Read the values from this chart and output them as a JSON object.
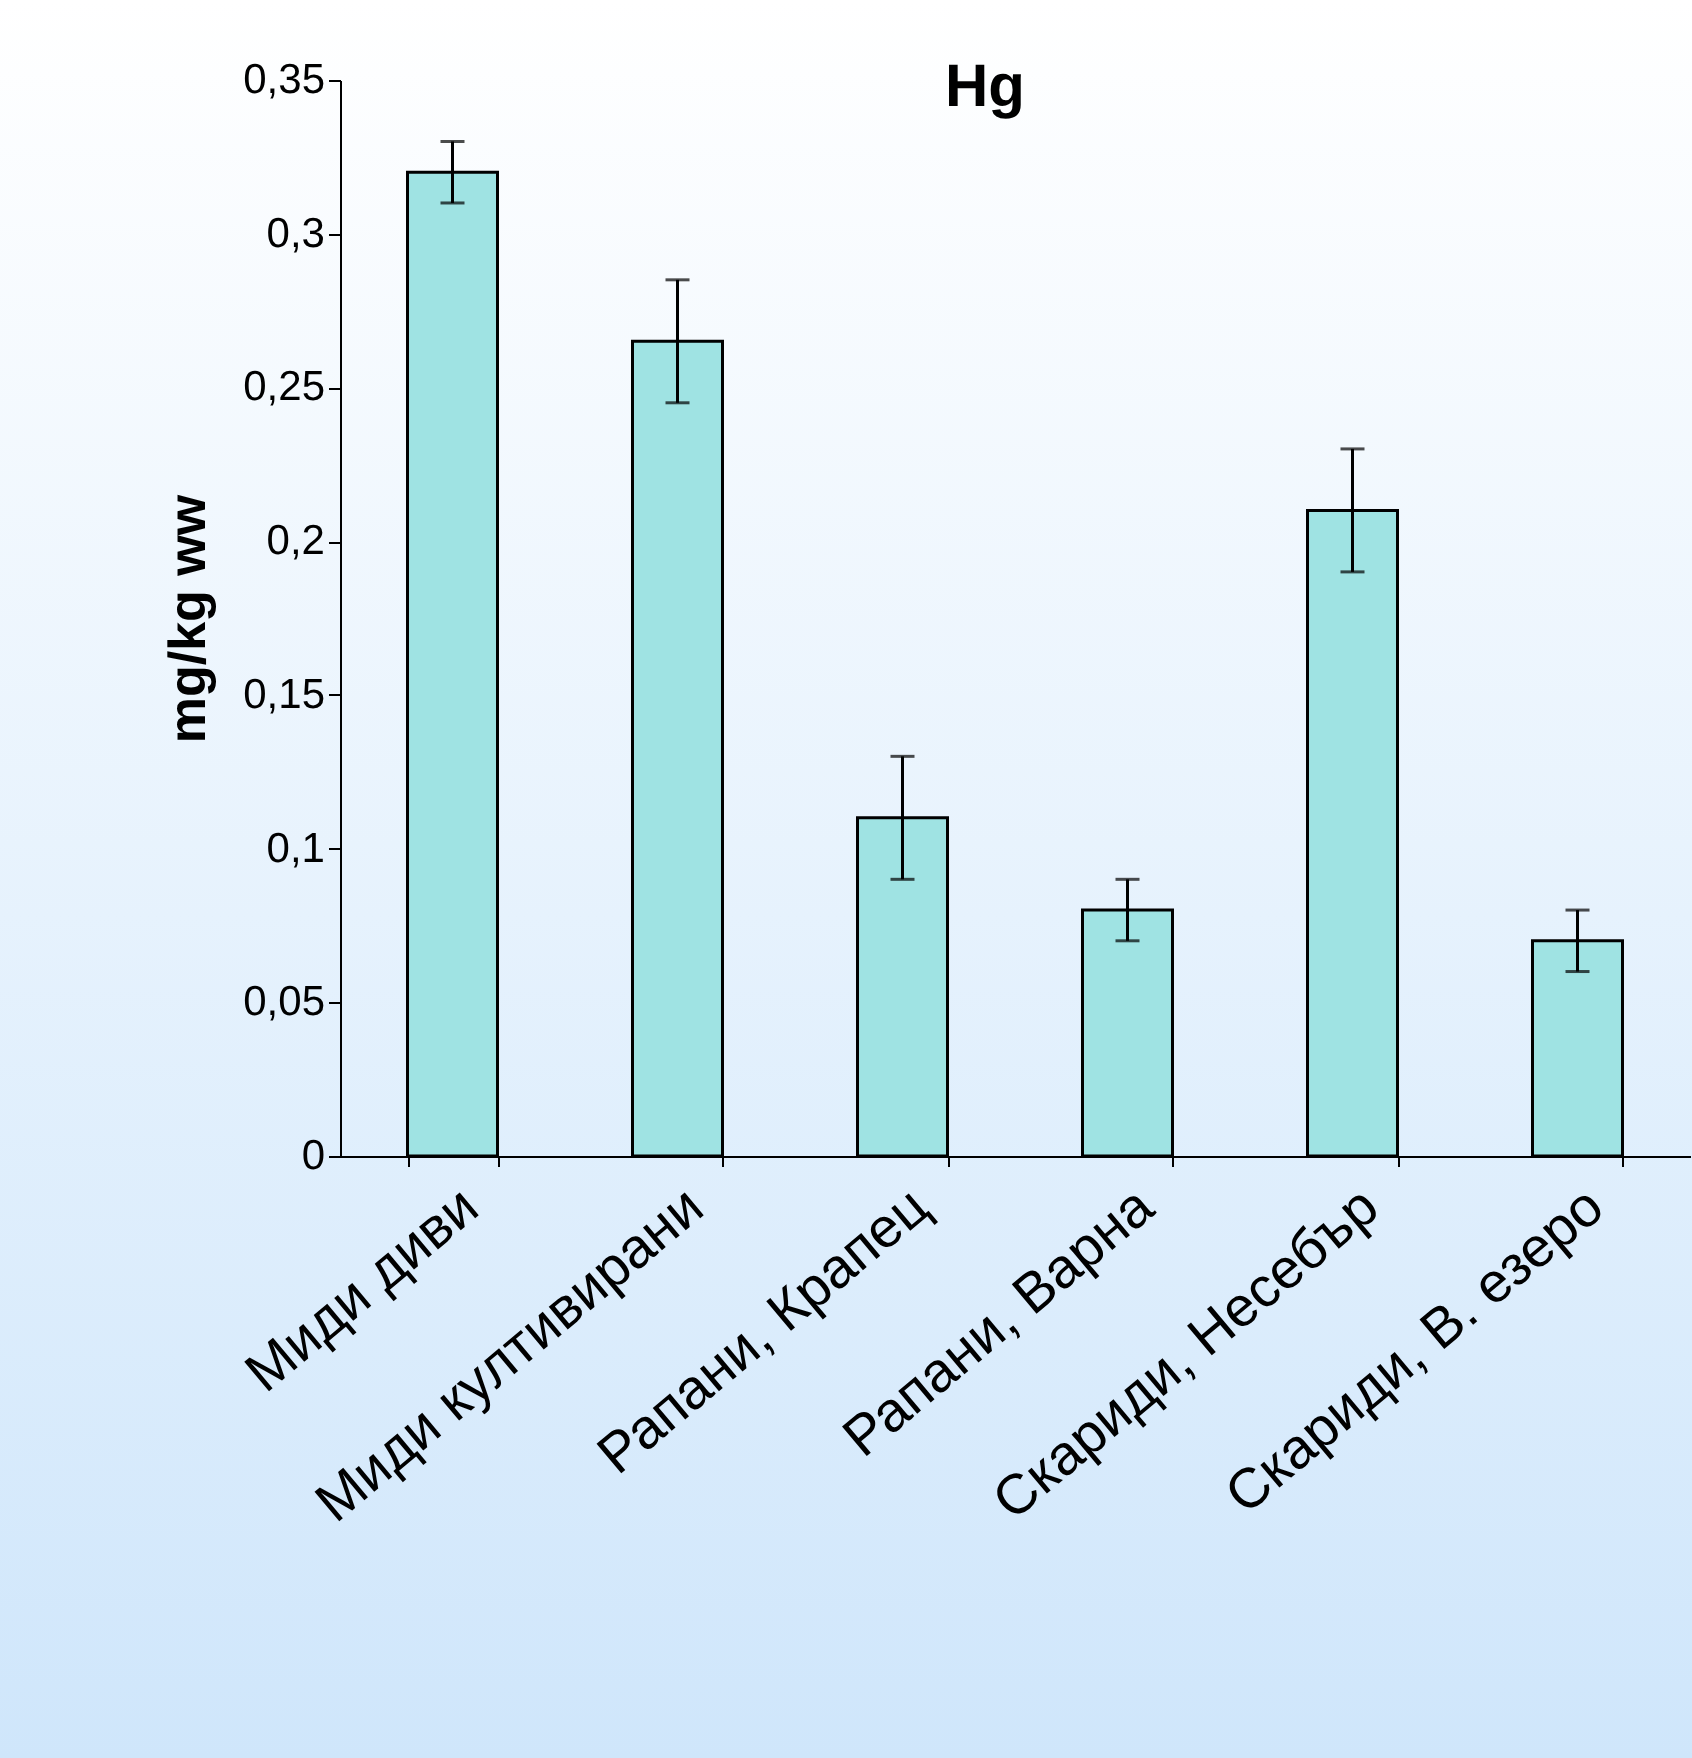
{
  "chart_data": {
    "type": "bar",
    "title": "Hg",
    "ylabel": "mg/kg ww",
    "categories": [
      "Миди диви",
      "Миди култивирани",
      "Рапани, Крапец",
      "Рапани, Варна",
      "Скариди, Несебър",
      "Скариди, В. езеро"
    ],
    "values": [
      0.32,
      0.265,
      0.11,
      0.08,
      0.21,
      0.07
    ],
    "errors": [
      0.01,
      0.02,
      0.02,
      0.01,
      0.02,
      0.01
    ],
    "color": "#9fe3e3",
    "ylim": [
      0,
      0.35
    ],
    "yticks": [
      {
        "value": 0,
        "label": "0"
      },
      {
        "value": 0.05,
        "label": "0,05"
      },
      {
        "value": 0.1,
        "label": "0,1"
      },
      {
        "value": 0.15,
        "label": "0,15"
      },
      {
        "value": 0.2,
        "label": "0,2"
      },
      {
        "value": 0.25,
        "label": "0,25"
      },
      {
        "value": 0.3,
        "label": "0,3"
      },
      {
        "value": 0.35,
        "label": "0,35"
      }
    ],
    "grid": false
  }
}
